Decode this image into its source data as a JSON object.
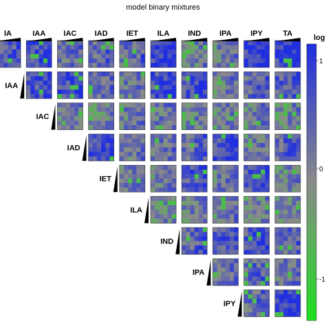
{
  "chart_data": {
    "type": "heatmap",
    "title": "model binary mixtures",
    "column_labels": [
      "IA",
      "IAA",
      "IAC",
      "IAD",
      "IET",
      "ILA",
      "IND",
      "IPA",
      "IPY",
      "TA"
    ],
    "row_labels": [
      "IA",
      "IAA",
      "IAC",
      "IAD",
      "IET",
      "ILA",
      "IND",
      "IPA",
      "IPY"
    ],
    "colorbar": {
      "label": "log",
      "ticks": [
        "1",
        "0",
        "-1"
      ],
      "colors": {
        "high": "#1f2ee0",
        "mid": "#8a8a8a",
        "low": "#1ee01e"
      }
    },
    "grid": {
      "rows": 9,
      "cols": 10,
      "cells_per_tile": 6
    }
  }
}
